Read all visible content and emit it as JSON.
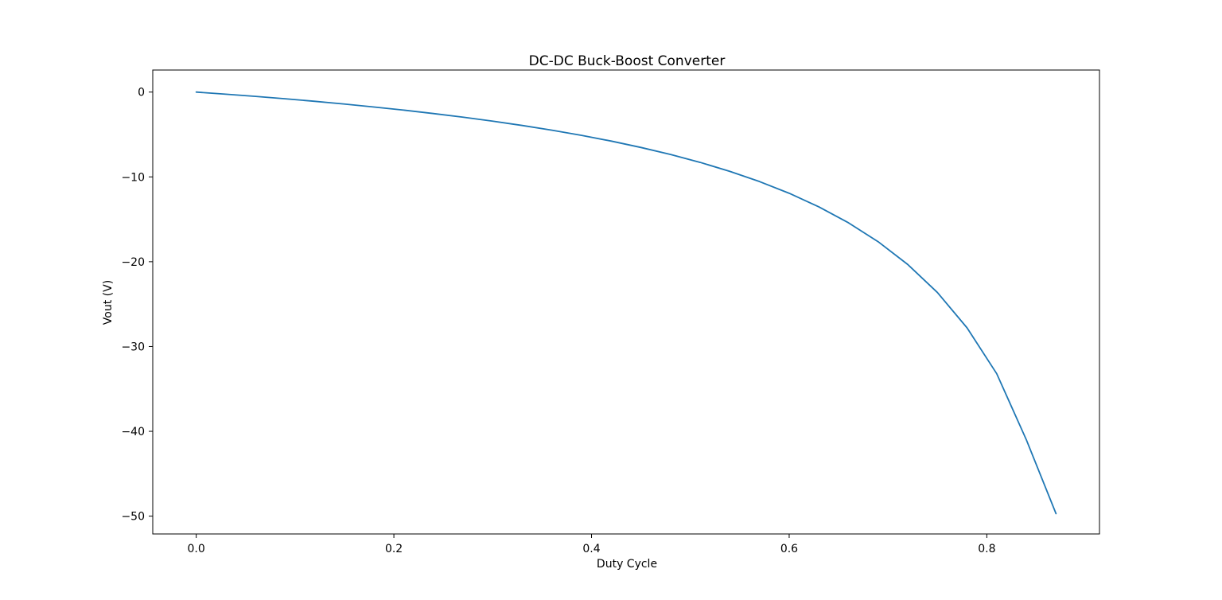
{
  "figure": {
    "title": "DC-DC Buck-Boost Converter",
    "background_color": "#ffffff"
  },
  "chart_data": {
    "type": "line",
    "title": "DC-DC Buck-Boost Converter",
    "xlabel": "Duty Cycle",
    "ylabel": "Vout (V)",
    "grid": false,
    "legend": "none",
    "xlim": [
      -0.044,
      0.914
    ],
    "ylim": [
      -52.1,
      2.6
    ],
    "xticks": {
      "values": [
        0.0,
        0.2,
        0.4,
        0.6,
        0.8
      ],
      "labels": [
        "0.0",
        "0.2",
        "0.4",
        "0.6",
        "0.8"
      ]
    },
    "yticks": {
      "values": [
        0,
        -10,
        -20,
        -30,
        -40,
        -50
      ],
      "labels": [
        "0",
        "−10",
        "−20",
        "−30",
        "−40",
        "−50"
      ]
    },
    "series": [
      {
        "name": "Vout",
        "color": "#1f77b4",
        "line_width": 1.8,
        "x": [
          0.0,
          0.03,
          0.06,
          0.09,
          0.12,
          0.15,
          0.18,
          0.21,
          0.24,
          0.27,
          0.3,
          0.33,
          0.36,
          0.39,
          0.42,
          0.45,
          0.48,
          0.51,
          0.54,
          0.57,
          0.6,
          0.63,
          0.66,
          0.69,
          0.72,
          0.75,
          0.78,
          0.81,
          0.84,
          0.87
        ],
        "y": [
          0.0,
          -0.25,
          -0.51,
          -0.79,
          -1.09,
          -1.41,
          -1.76,
          -2.13,
          -2.53,
          -2.96,
          -3.43,
          -3.94,
          -4.5,
          -5.11,
          -5.78,
          -6.53,
          -7.36,
          -8.29,
          -9.35,
          -10.55,
          -11.93,
          -13.53,
          -15.41,
          -17.64,
          -20.33,
          -23.63,
          -27.8,
          -33.2,
          -41.0,
          -49.7
        ]
      }
    ],
    "spine_color": "#000000"
  }
}
